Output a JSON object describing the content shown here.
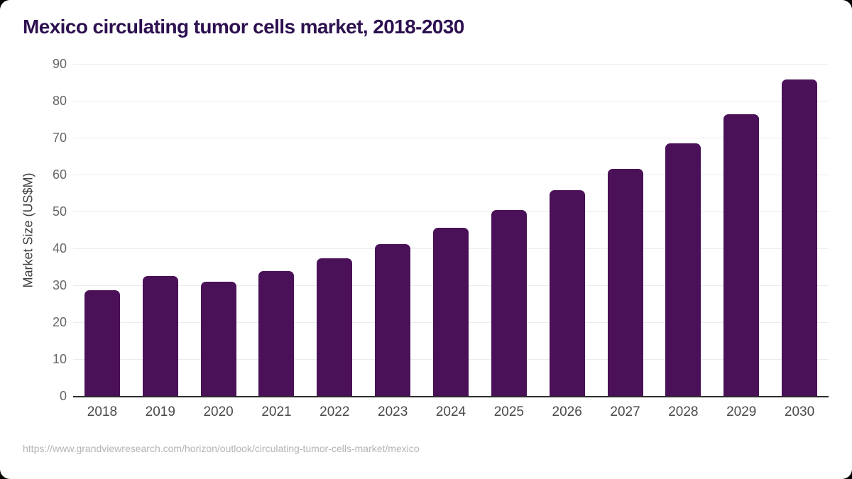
{
  "header": {
    "title": "Mexico circulating tumor cells market, 2018-2030",
    "title_color": "#2e1150"
  },
  "chart_data": {
    "type": "bar",
    "title": "Mexico circulating tumor cells market, 2018-2030",
    "categories": [
      "2018",
      "2019",
      "2020",
      "2021",
      "2022",
      "2023",
      "2024",
      "2025",
      "2026",
      "2027",
      "2028",
      "2029",
      "2030"
    ],
    "values": [
      28.6,
      32.5,
      30.9,
      33.8,
      37.3,
      41.1,
      45.5,
      50.3,
      55.7,
      61.6,
      68.5,
      76.3,
      85.8
    ],
    "xlabel": "",
    "ylabel": "Market Size (US$M)",
    "ylim": [
      0,
      90
    ],
    "yticks": [
      0,
      10,
      20,
      30,
      40,
      50,
      60,
      70,
      80,
      90
    ],
    "grid": true,
    "legend": false,
    "bar_color": "#4a1158",
    "gridline_color": "#ececec",
    "axis_line_color": "#2d2d2d",
    "y_tick_label_color": "#666666",
    "x_tick_label_color": "#4a4a4a"
  },
  "footer": {
    "source_url": "https://www.grandviewresearch.com/horizon/outlook/circulating-tumor-cells-market/mexico"
  }
}
